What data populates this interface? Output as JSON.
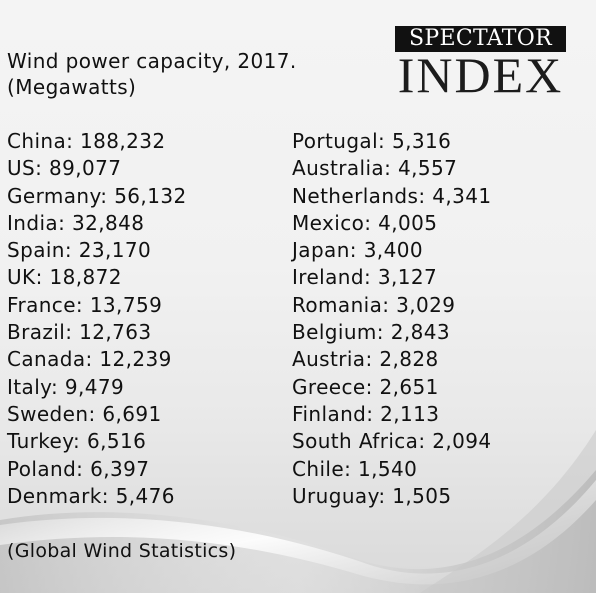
{
  "title": {
    "line1": "Wind power capacity, 2017.",
    "line2": "(Megawatts)"
  },
  "logo": {
    "top": "SPECTATOR",
    "bottom": "INDEX"
  },
  "entries_left": [
    {
      "country": "China",
      "value": "188,232"
    },
    {
      "country": "US",
      "value": "89,077"
    },
    {
      "country": "Germany",
      "value": "56,132"
    },
    {
      "country": "India",
      "value": "32,848"
    },
    {
      "country": "Spain",
      "value": "23,170"
    },
    {
      "country": "UK",
      "value": "18,872"
    },
    {
      "country": "France",
      "value": "13,759"
    },
    {
      "country": "Brazil",
      "value": "12,763"
    },
    {
      "country": "Canada",
      "value": "12,239"
    },
    {
      "country": "Italy",
      "value": "9,479"
    },
    {
      "country": "Sweden",
      "value": "6,691"
    },
    {
      "country": "Turkey",
      "value": "6,516"
    },
    {
      "country": "Poland",
      "value": "6,397"
    },
    {
      "country": "Denmark",
      "value": "5,476"
    }
  ],
  "entries_right": [
    {
      "country": "Portugal",
      "value": "5,316"
    },
    {
      "country": "Australia",
      "value": "4,557"
    },
    {
      "country": "Netherlands",
      "value": "4,341"
    },
    {
      "country": "Mexico",
      "value": "4,005"
    },
    {
      "country": "Japan",
      "value": "3,400"
    },
    {
      "country": "Ireland",
      "value": "3,127"
    },
    {
      "country": "Romania",
      "value": "3,029"
    },
    {
      "country": "Belgium",
      "value": "2,843"
    },
    {
      "country": "Austria",
      "value": "2,828"
    },
    {
      "country": "Greece",
      "value": "2,651"
    },
    {
      "country": "Finland",
      "value": "2,113"
    },
    {
      "country": "South Africa",
      "value": "2,094"
    },
    {
      "country": "Chile",
      "value": "1,540"
    },
    {
      "country": "Uruguay",
      "value": "1,505"
    }
  ],
  "separator": ": ",
  "source": "(Global Wind Statistics)",
  "colors": {
    "text": "#111111",
    "logo_band": "#111111",
    "logo_band_text": "#ffffff",
    "background": "#f1f1f1"
  }
}
